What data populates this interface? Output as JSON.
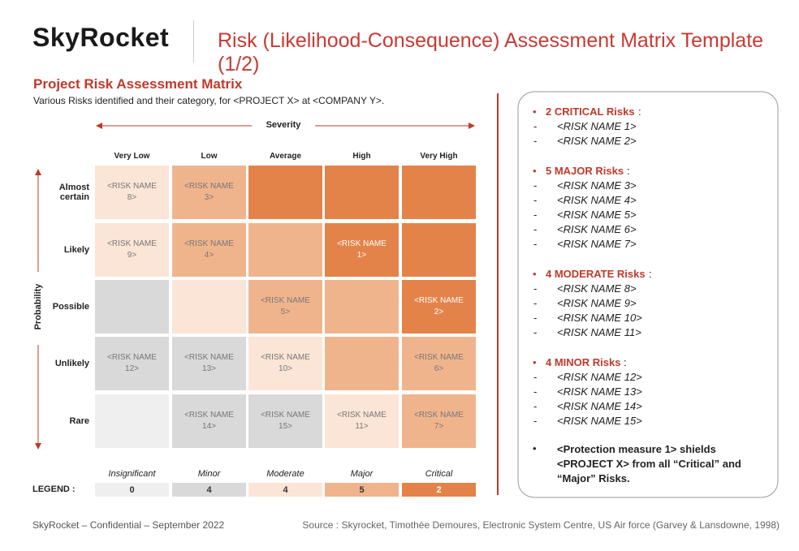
{
  "header": {
    "logo": "SkyRocket",
    "title": "Risk (Likelihood-Consequence) Assessment Matrix Template (1/2)"
  },
  "section": {
    "title": "Project Risk Assessment Matrix",
    "subtitle": "Various Risks identified and their category, for <PROJECT X> at <COMPANY Y>."
  },
  "matrix": {
    "severity_label": "Severity",
    "probability_label": "Probability",
    "columns": [
      "Very Low",
      "Low",
      "Average",
      "High",
      "Very High"
    ],
    "rows": [
      {
        "label": "Almost certain",
        "cells": [
          {
            "text": "<RISK NAME 8>",
            "color": "#fbe5d6"
          },
          {
            "text": "<RISK NAME 3>",
            "color": "#f0b48d"
          },
          {
            "color": "#e3834a"
          },
          {
            "color": "#e3834a"
          },
          {
            "color": "#e3834a"
          }
        ]
      },
      {
        "label": "Likely",
        "cells": [
          {
            "text": "<RISK NAME 9>",
            "color": "#fbe5d6"
          },
          {
            "text": "<RISK NAME 4>",
            "color": "#f0b48d"
          },
          {
            "color": "#f0b48d"
          },
          {
            "text": "<RISK NAME 1>",
            "color": "#e3834a"
          },
          {
            "color": "#e3834a"
          }
        ]
      },
      {
        "label": "Possible",
        "cells": [
          {
            "color": "#d9d9d9"
          },
          {
            "color": "#fbe5d6"
          },
          {
            "text": "<RISK NAME 5>",
            "color": "#f0b48d"
          },
          {
            "color": "#f0b48d"
          },
          {
            "text": "<RISK NAME 2>",
            "color": "#e3834a"
          }
        ]
      },
      {
        "label": "Unlikely",
        "cells": [
          {
            "text": "<RISK NAME 12>",
            "color": "#d9d9d9"
          },
          {
            "text": "<RISK NAME 13>",
            "color": "#d9d9d9"
          },
          {
            "text": "<RISK NAME 10>",
            "color": "#fbe5d6"
          },
          {
            "color": "#f0b48d"
          },
          {
            "text": "<RISK NAME 6>",
            "color": "#f0b48d"
          }
        ]
      },
      {
        "label": "Rare",
        "cells": [
          {
            "color": "#efefef"
          },
          {
            "text": "<RISK NAME 14>",
            "color": "#d9d9d9"
          },
          {
            "text": "<RISK NAME 15>",
            "color": "#d9d9d9"
          },
          {
            "text": "<RISK NAME 11>",
            "color": "#fbe5d6"
          },
          {
            "text": "<RISK NAME 7>",
            "color": "#f0b48d"
          }
        ]
      }
    ]
  },
  "legend": {
    "label": "LEGEND :",
    "items": [
      {
        "name": "Insignificant",
        "count": 0,
        "color": "#efefef"
      },
      {
        "name": "Minor",
        "count": 4,
        "color": "#d9d9d9"
      },
      {
        "name": "Moderate",
        "count": 4,
        "color": "#fbe5d6"
      },
      {
        "name": "Major",
        "count": 5,
        "color": "#f0b48d"
      },
      {
        "name": "Critical",
        "count": 2,
        "color": "#e3834a"
      }
    ]
  },
  "summary": {
    "separator": ":",
    "groups": [
      {
        "heading": "2 CRITICAL Risks",
        "items": [
          "<RISK NAME 1>",
          "<RISK NAME 2>"
        ]
      },
      {
        "heading": "5 MAJOR Risks",
        "items": [
          "<RISK NAME 3>",
          "<RISK NAME 4>",
          "<RISK NAME 5>",
          "<RISK NAME 6>",
          "<RISK NAME 7>"
        ]
      },
      {
        "heading": "4 MODERATE Risks",
        "items": [
          "<RISK NAME 8>",
          "<RISK NAME 9>",
          "<RISK NAME 10>",
          "<RISK NAME 11>"
        ]
      },
      {
        "heading": "4 MINOR Risks",
        "items": [
          "<RISK NAME 12>",
          "<RISK NAME 13>",
          "<RISK NAME 14>",
          "<RISK NAME 15>"
        ]
      }
    ],
    "conclusion": "<Protection measure 1> shields <PROJECT X> from all “Critical” and “Major” Risks."
  },
  "footer": {
    "left": "SkyRocket – Confidential – September 2022",
    "right": "Source : Skyrocket, Timothée Demoures, Electronic System Centre, US Air force (Garvey & Lansdowne, 1998)"
  }
}
